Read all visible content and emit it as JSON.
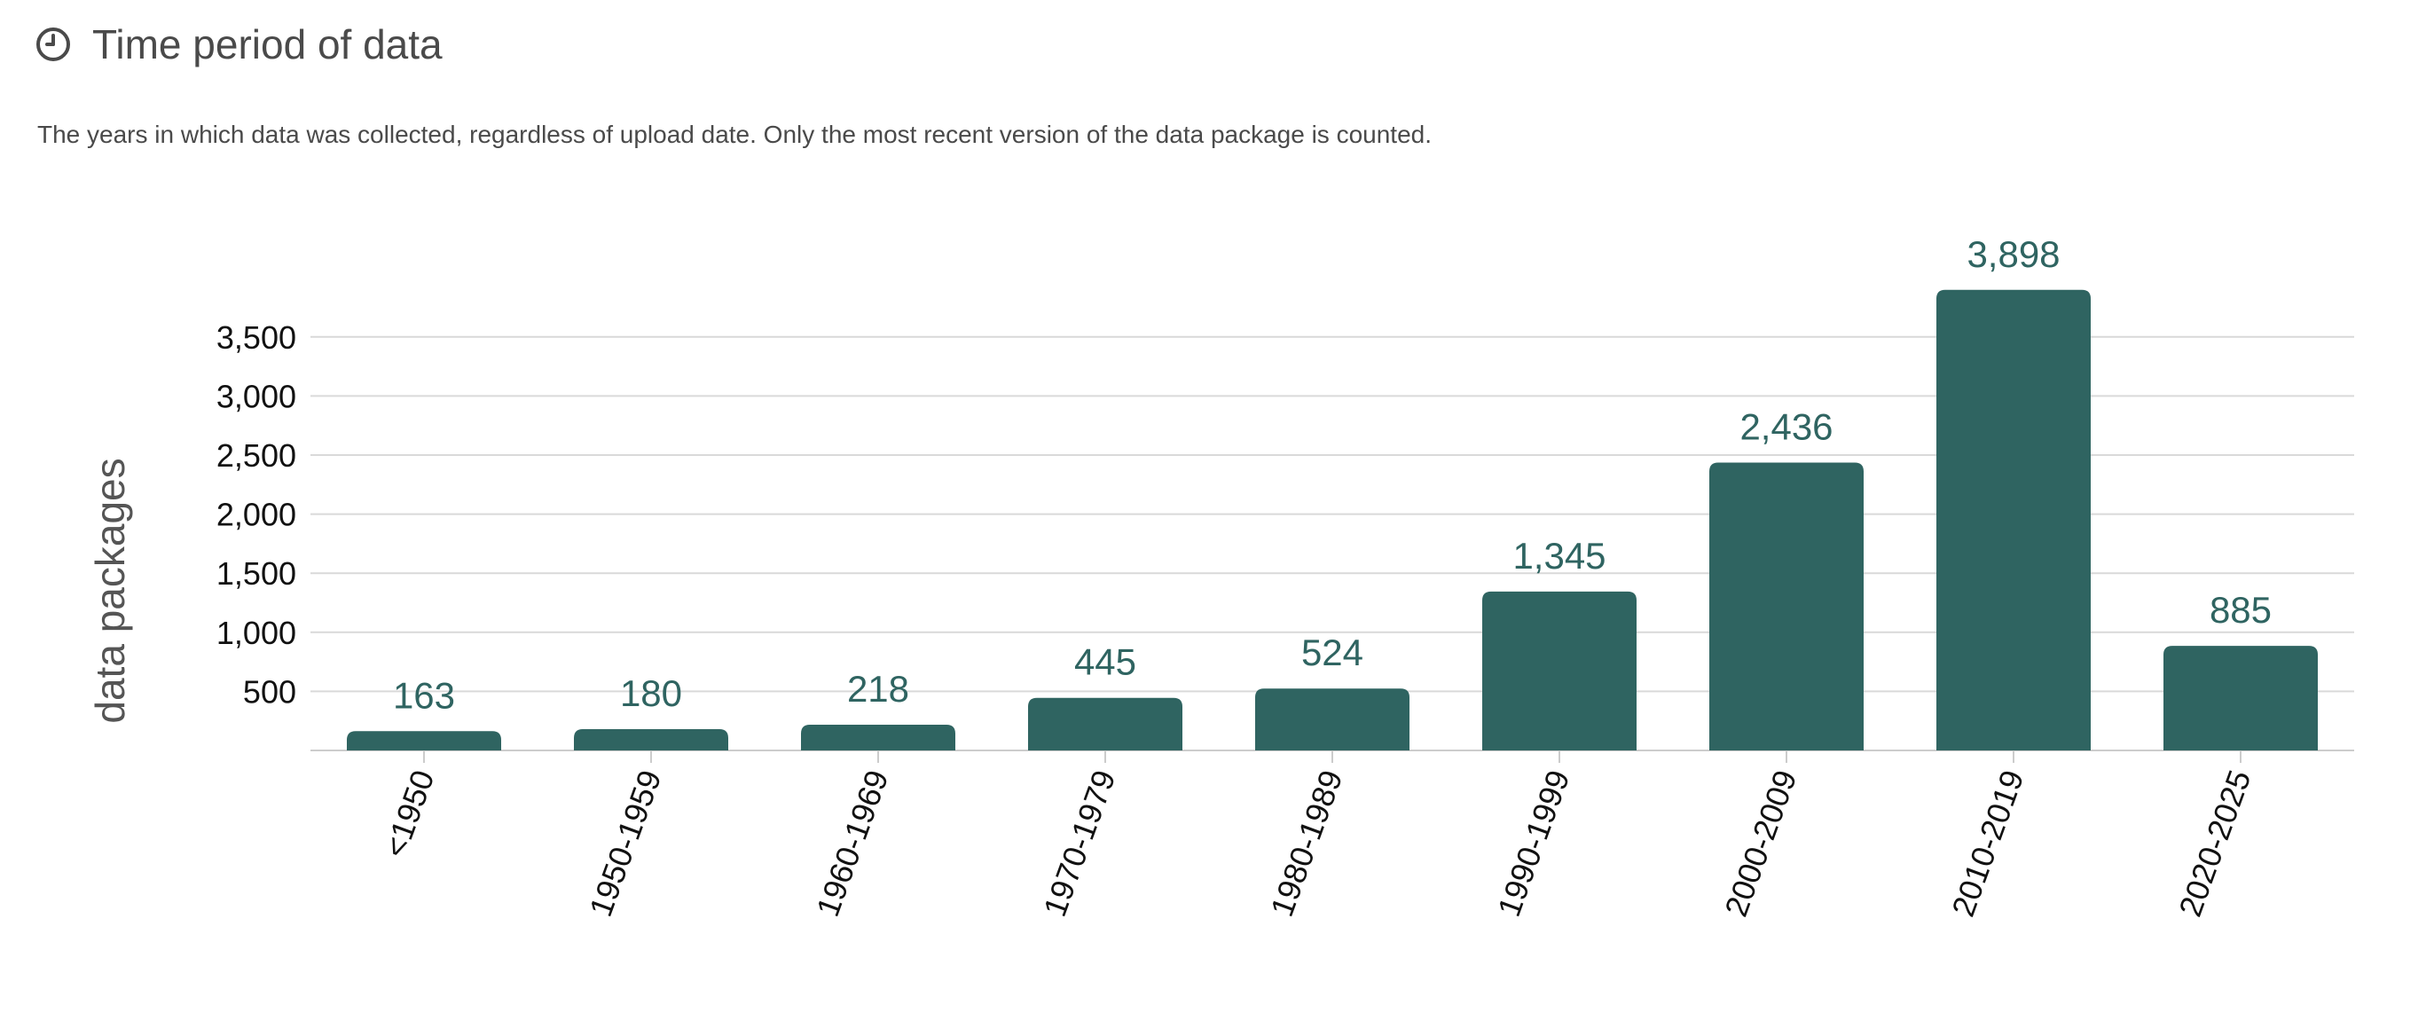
{
  "header": {
    "icon": "clock-icon",
    "title": "Time period of data"
  },
  "description": "The years in which data was collected, regardless of upload date. Only the most recent version of the data package is counted.",
  "colors": {
    "bar": "#2f6461",
    "label": "#2f6461",
    "grid": "#d9d9d9"
  },
  "chart_data": {
    "type": "bar",
    "categories": [
      "<1950",
      "1950-1959",
      "1960-1969",
      "1970-1979",
      "1980-1989",
      "1990-1999",
      "2000-2009",
      "2010-2019",
      "2020-2025"
    ],
    "values": [
      163,
      180,
      218,
      445,
      524,
      1345,
      2436,
      3898,
      885
    ],
    "value_labels": [
      "163",
      "180",
      "218",
      "445",
      "524",
      "1,345",
      "2,436",
      "3,898",
      "885"
    ],
    "ylabel": "data packages",
    "yticks": [
      500,
      1000,
      1500,
      2000,
      2500,
      3000,
      3500
    ],
    "ytick_labels": [
      "500",
      "1,000",
      "1,500",
      "2,000",
      "2,500",
      "3,000",
      "3,500"
    ],
    "ylim": [
      0,
      3898
    ],
    "grid": true,
    "legend": "none"
  }
}
